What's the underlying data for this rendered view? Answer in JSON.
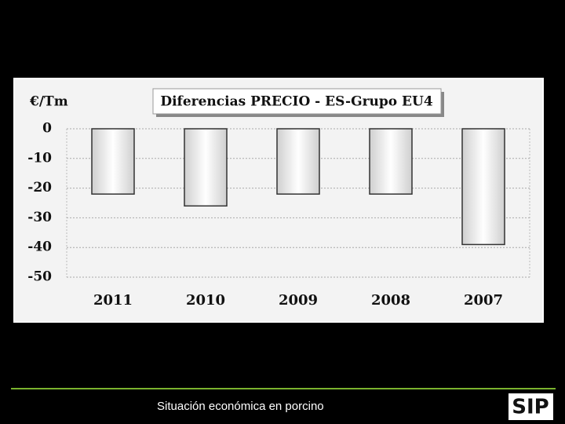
{
  "chart_data": {
    "type": "bar",
    "title": "Diferencias PRECIO - ES-Grupo EU4",
    "y_label": "€/Tm",
    "categories": [
      "2011",
      "2010",
      "2009",
      "2008",
      "2007"
    ],
    "values": [
      -22,
      -26,
      -22,
      -22,
      -39
    ],
    "color": "#e4e4e4",
    "ylim": [
      -50,
      0
    ],
    "yticks": [
      0,
      -10,
      -20,
      -30,
      -40,
      -50
    ],
    "grid": true
  },
  "footer": {
    "text": "Situación económica en porcino",
    "logo": "SIP"
  }
}
